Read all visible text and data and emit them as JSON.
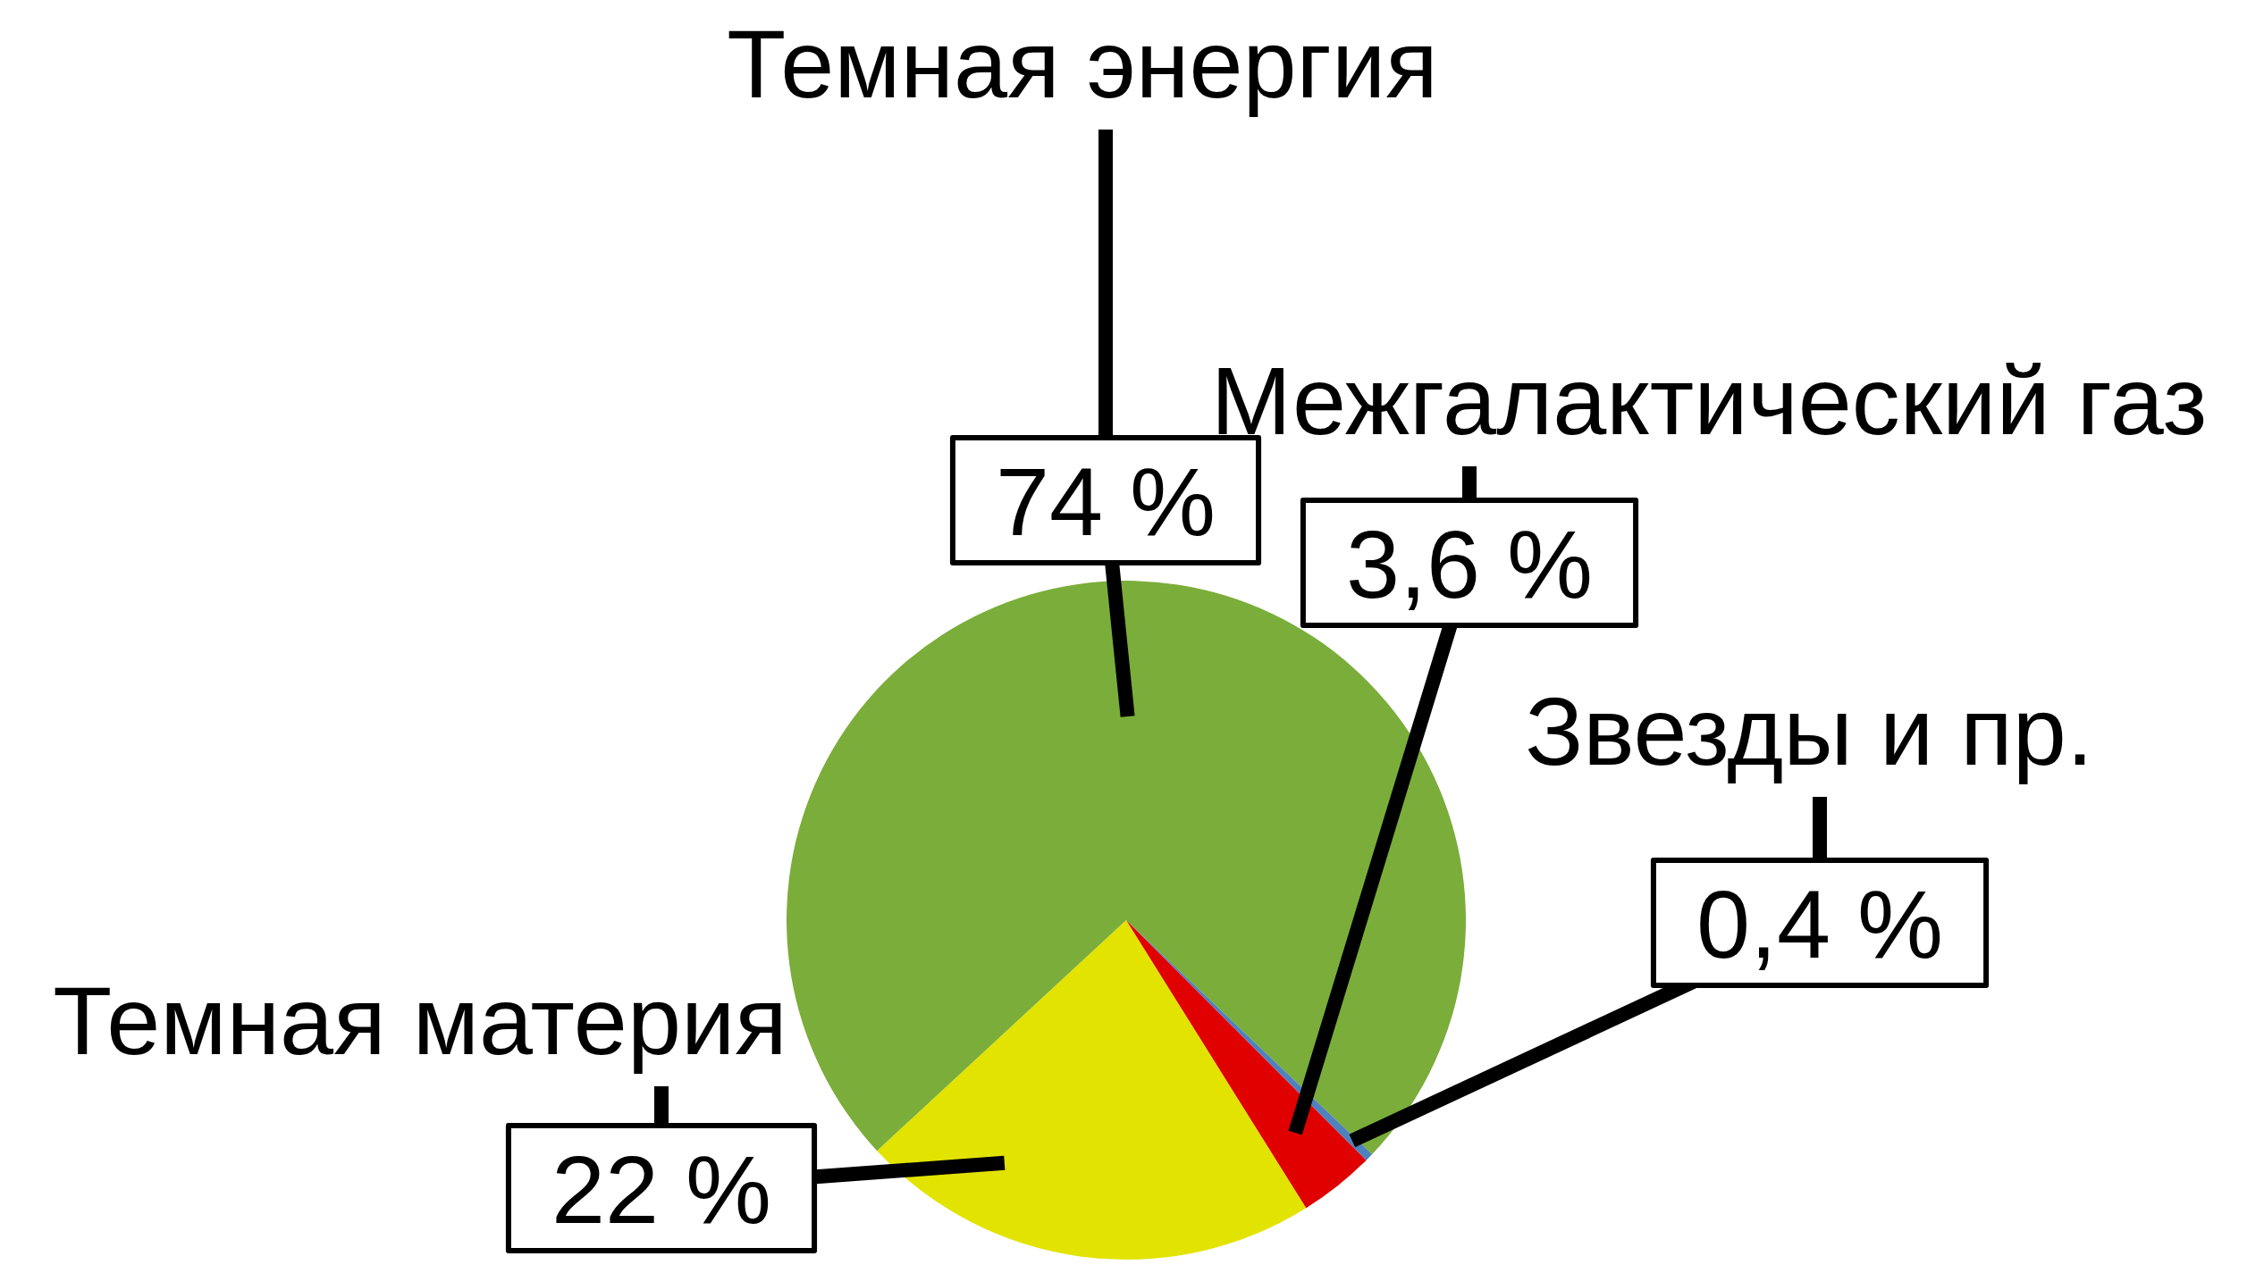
{
  "chart_data": {
    "type": "pie",
    "categories": [
      "Темная материя",
      "Темная энергия",
      "Звезды и пр.",
      "Межгалактический газ"
    ],
    "values": [
      22,
      74,
      0.4,
      3.6
    ],
    "colors": [
      "#e3e300",
      "#7bad3a",
      "#4f81bd",
      "#e00000"
    ],
    "value_labels": [
      "22 %",
      "74 %",
      "0,4 %",
      "3,6 %"
    ]
  }
}
